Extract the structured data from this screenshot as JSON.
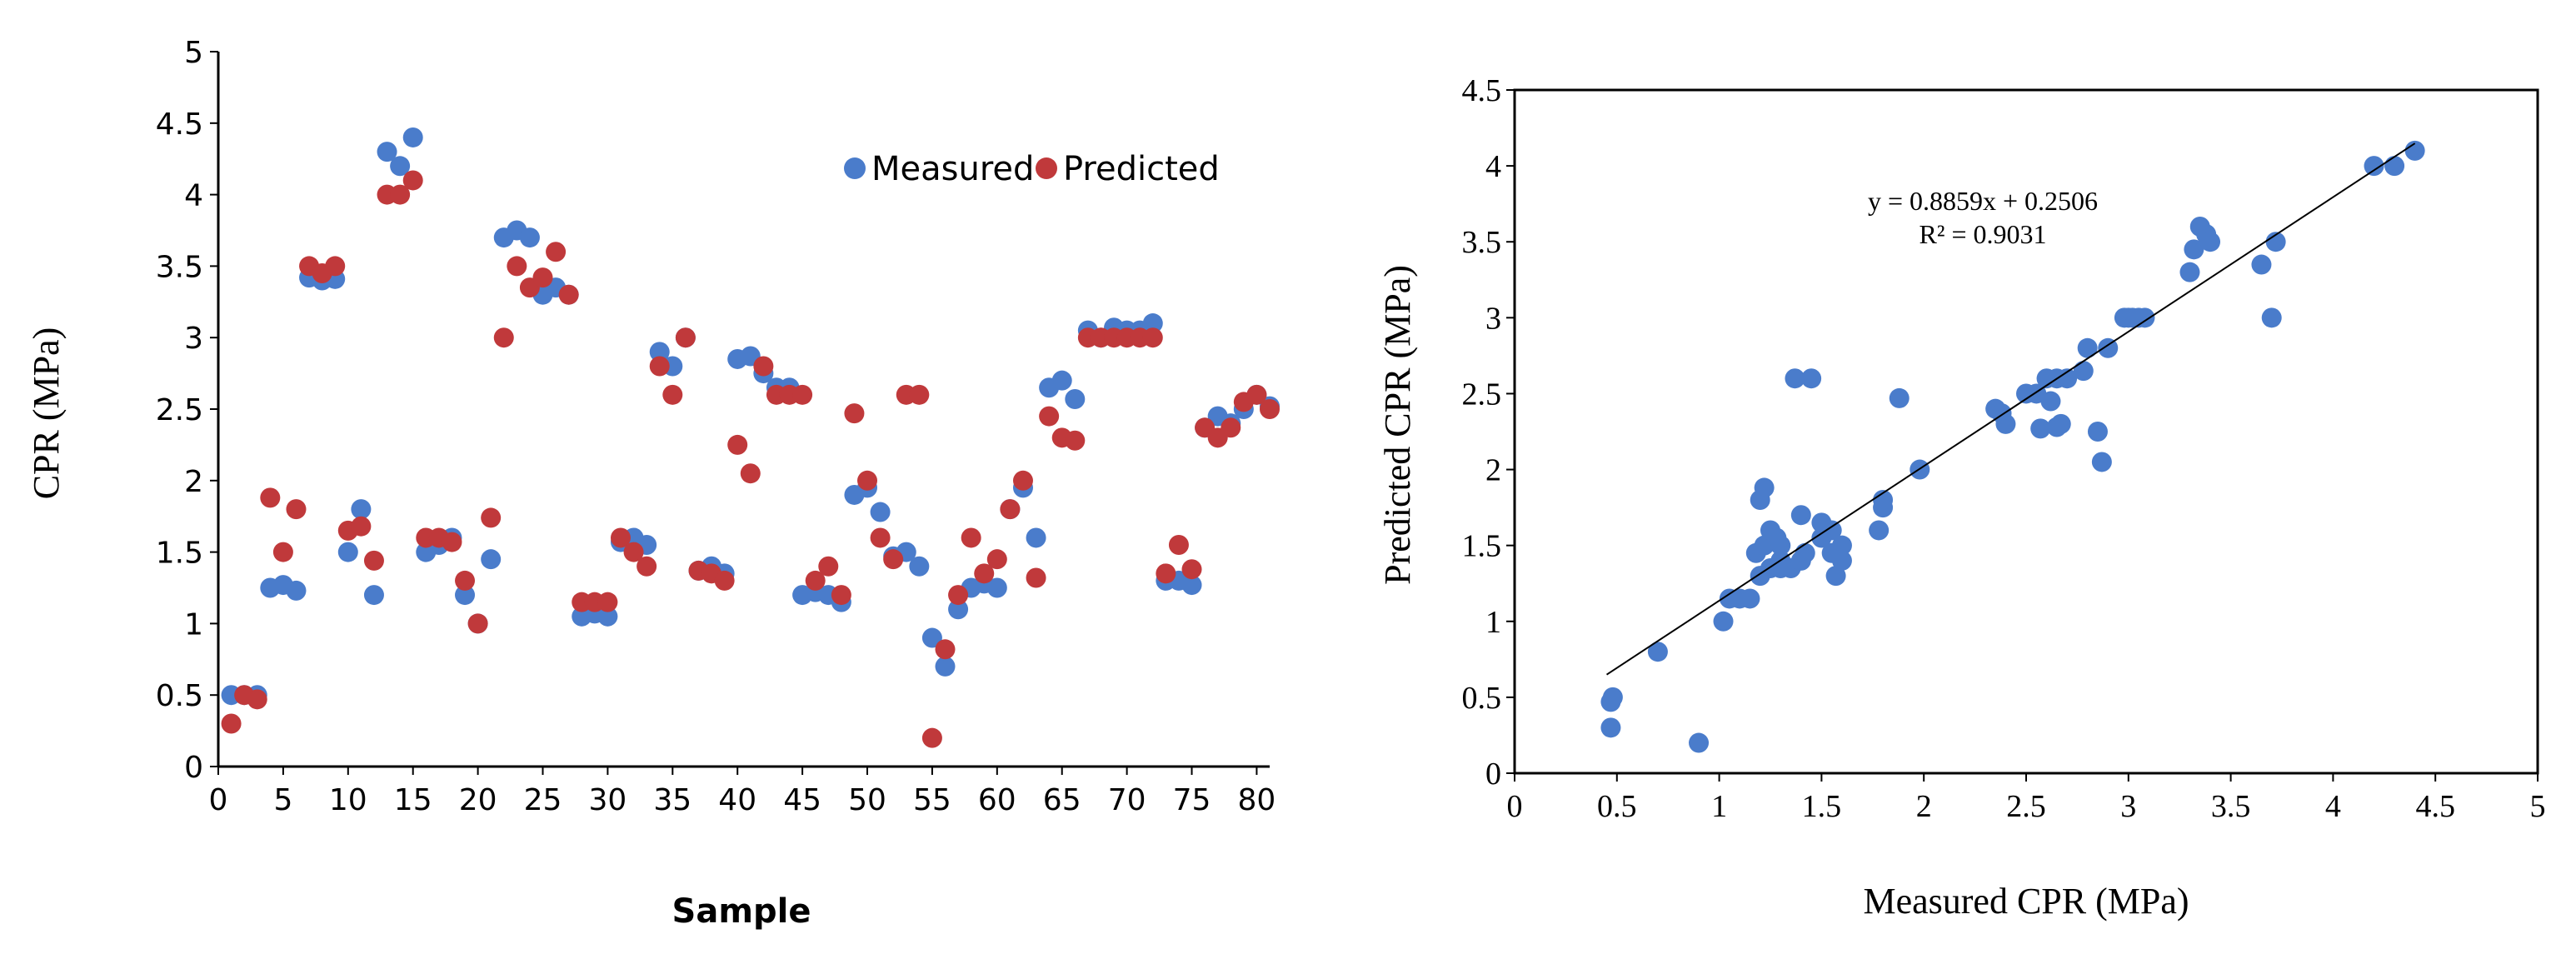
{
  "colors": {
    "measured": "#4a7ccb",
    "predicted": "#c0393b",
    "axis": "#000000"
  },
  "chart_data": [
    {
      "type": "scatter",
      "title": "",
      "xlabel": "Sample",
      "ylabel": "CPR (MPa)",
      "xlim": [
        0,
        81
      ],
      "ylim": [
        0,
        5
      ],
      "xticks": [
        0,
        5,
        10,
        15,
        20,
        25,
        30,
        35,
        40,
        45,
        50,
        55,
        60,
        65,
        70,
        75,
        80
      ],
      "yticks": [
        0,
        0.5,
        1,
        1.5,
        2,
        2.5,
        3,
        3.5,
        4,
        4.5,
        5
      ],
      "legend": "top-right",
      "x": [
        1,
        2,
        3,
        4,
        5,
        6,
        7,
        8,
        9,
        10,
        11,
        12,
        13,
        14,
        15,
        16,
        17,
        18,
        19,
        20,
        21,
        22,
        23,
        24,
        25,
        26,
        27,
        28,
        29,
        30,
        31,
        32,
        33,
        34,
        35,
        36,
        37,
        38,
        39,
        40,
        41,
        42,
        43,
        44,
        45,
        46,
        47,
        48,
        49,
        50,
        51,
        52,
        53,
        54,
        55,
        56,
        57,
        58,
        59,
        60,
        61,
        62,
        63,
        64,
        65,
        66,
        67,
        68,
        69,
        70,
        71,
        72,
        73,
        74,
        75,
        76,
        77,
        78,
        79,
        80,
        81
      ],
      "series": [
        {
          "name": "Measured",
          "values": [
            0.5,
            0.5,
            0.5,
            1.25,
            1.27,
            1.23,
            3.42,
            3.4,
            3.41,
            1.5,
            1.8,
            1.2,
            4.3,
            4.2,
            4.4,
            1.5,
            1.55,
            1.6,
            1.2,
            1.0,
            1.45,
            3.7,
            3.75,
            3.7,
            3.3,
            3.35,
            3.3,
            1.05,
            1.07,
            1.05,
            1.57,
            1.6,
            1.55,
            2.9,
            2.8,
            3.0,
            1.37,
            1.4,
            1.35,
            2.85,
            2.87,
            2.75,
            2.65,
            2.65,
            1.2,
            1.22,
            1.2,
            1.15,
            1.9,
            1.95,
            1.78,
            1.47,
            1.5,
            1.4,
            0.9,
            0.7,
            1.1,
            1.25,
            1.28,
            1.25,
            1.8,
            1.95,
            1.6,
            2.65,
            2.7,
            2.57,
            3.05,
            3.0,
            3.07,
            3.05,
            3.05,
            3.1,
            1.3,
            1.3,
            1.27,
            2.37,
            2.45,
            2.4,
            2.5,
            2.6,
            2.52
          ]
        },
        {
          "name": "Predicted",
          "values": [
            0.3,
            0.5,
            0.47,
            1.88,
            1.5,
            1.8,
            3.5,
            3.45,
            3.5,
            1.65,
            1.68,
            1.44,
            4.0,
            4.0,
            4.1,
            1.6,
            1.6,
            1.57,
            1.3,
            1.0,
            1.74,
            3.0,
            3.5,
            3.35,
            3.42,
            3.6,
            3.3,
            1.15,
            1.15,
            1.15,
            1.6,
            1.5,
            1.4,
            2.8,
            2.6,
            3.0,
            1.37,
            1.35,
            1.3,
            2.25,
            2.05,
            2.8,
            2.6,
            2.6,
            2.6,
            1.3,
            1.4,
            1.2,
            2.47,
            2.0,
            1.6,
            1.45,
            2.6,
            2.6,
            0.2,
            0.82,
            1.2,
            1.6,
            1.35,
            1.45,
            1.8,
            2.0,
            1.32,
            2.45,
            2.3,
            2.28,
            3.0,
            3.0,
            3.0,
            3.0,
            3.0,
            3.0,
            1.35,
            1.55,
            1.38,
            2.37,
            2.3,
            2.37,
            2.55,
            2.6,
            2.5
          ]
        }
      ]
    },
    {
      "type": "scatter",
      "title": "",
      "xlabel": "Measured CPR (MPa)",
      "ylabel": "Predicted CPR (MPa)",
      "xlim": [
        0,
        5
      ],
      "ylim": [
        0,
        4.5
      ],
      "xticks": [
        0,
        0.5,
        1,
        1.5,
        2,
        2.5,
        3,
        3.5,
        4,
        4.5,
        5
      ],
      "yticks": [
        0,
        0.5,
        1,
        1.5,
        2,
        2.5,
        3,
        3.5,
        4,
        4.5
      ],
      "trendline": {
        "slope": 0.8859,
        "intercept": 0.2506,
        "x_range": [
          0.45,
          4.4
        ]
      },
      "equation": "y = 0.8859x + 0.2506",
      "r_squared": "R² = 0.9031",
      "x": [
        0.47,
        0.48,
        0.47,
        0.7,
        0.9,
        1.02,
        1.05,
        1.1,
        1.15,
        1.2,
        1.18,
        1.2,
        1.22,
        1.22,
        1.25,
        1.25,
        1.28,
        1.3,
        1.3,
        1.3,
        1.35,
        1.37,
        1.4,
        1.4,
        1.42,
        1.45,
        1.5,
        1.5,
        1.55,
        1.55,
        1.57,
        1.6,
        1.6,
        1.78,
        1.8,
        1.8,
        1.88,
        1.98,
        2.35,
        2.38,
        2.4,
        2.5,
        2.55,
        2.57,
        2.6,
        2.62,
        2.65,
        2.65,
        2.67,
        2.7,
        2.78,
        2.8,
        2.85,
        2.87,
        2.9,
        2.98,
        3.0,
        3.02,
        3.05,
        3.08,
        3.3,
        3.32,
        3.35,
        3.38,
        3.4,
        3.65,
        3.7,
        3.72,
        4.2,
        4.3,
        4.4
      ],
      "y": [
        0.3,
        0.5,
        0.47,
        0.8,
        0.2,
        1.0,
        1.15,
        1.15,
        1.15,
        1.3,
        1.45,
        1.8,
        1.88,
        1.5,
        1.6,
        1.35,
        1.55,
        1.4,
        1.5,
        1.35,
        1.35,
        2.6,
        1.7,
        1.4,
        1.45,
        2.6,
        1.65,
        1.55,
        1.6,
        1.45,
        1.3,
        1.5,
        1.4,
        1.6,
        1.75,
        1.8,
        2.47,
        2.0,
        2.4,
        2.37,
        2.3,
        2.5,
        2.5,
        2.27,
        2.6,
        2.45,
        2.6,
        2.28,
        2.3,
        2.6,
        2.65,
        2.8,
        2.25,
        2.05,
        2.8,
        3.0,
        3.0,
        3.0,
        3.0,
        3.0,
        3.3,
        3.45,
        3.6,
        3.55,
        3.5,
        3.35,
        3.0,
        3.5,
        4.0,
        4.0,
        4.1
      ]
    }
  ]
}
